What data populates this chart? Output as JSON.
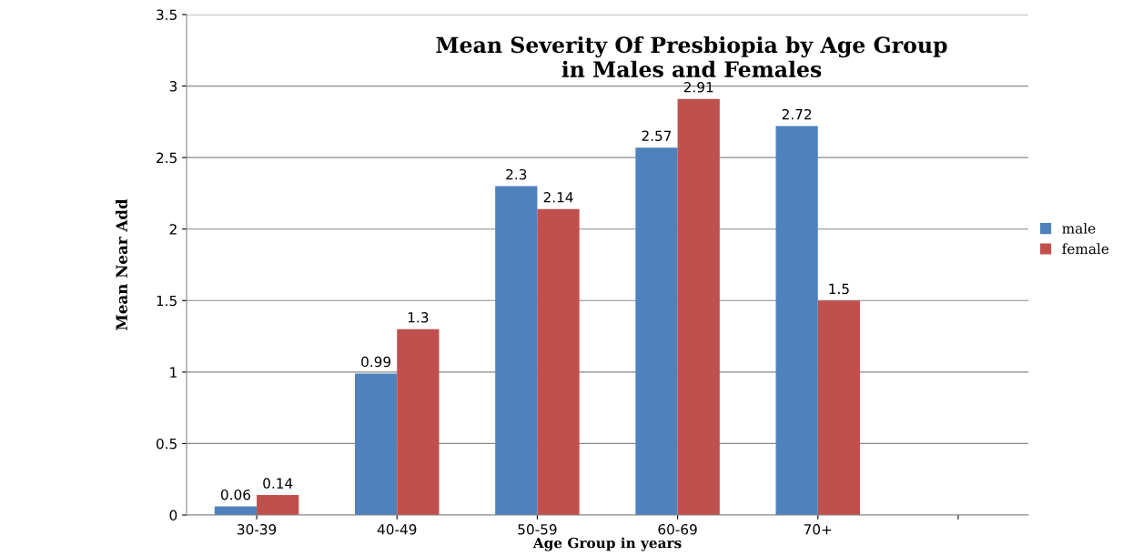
{
  "chart_data": {
    "type": "bar",
    "title": "Mean Severity Of Presbiopia by Age Group\nin Males and Females",
    "xlabel": "Age Group in years",
    "ylabel": "Mean Near Add",
    "categories": [
      "30-39",
      "40-49",
      "50-59",
      "60-69",
      "70+",
      null
    ],
    "series": [
      {
        "name": "male",
        "color": "#4f81bd",
        "values": [
          0.06,
          0.99,
          2.3,
          2.57,
          2.72,
          null
        ]
      },
      {
        "name": "female",
        "color": "#c0504d",
        "values": [
          0.14,
          1.3,
          2.14,
          2.91,
          1.5,
          null
        ]
      }
    ],
    "ylim": [
      0,
      3.5
    ],
    "yticks": [
      0,
      0.5,
      1,
      1.5,
      2,
      2.5,
      3,
      3.5
    ],
    "grid": "y",
    "legend": "right",
    "data_labels": true
  }
}
